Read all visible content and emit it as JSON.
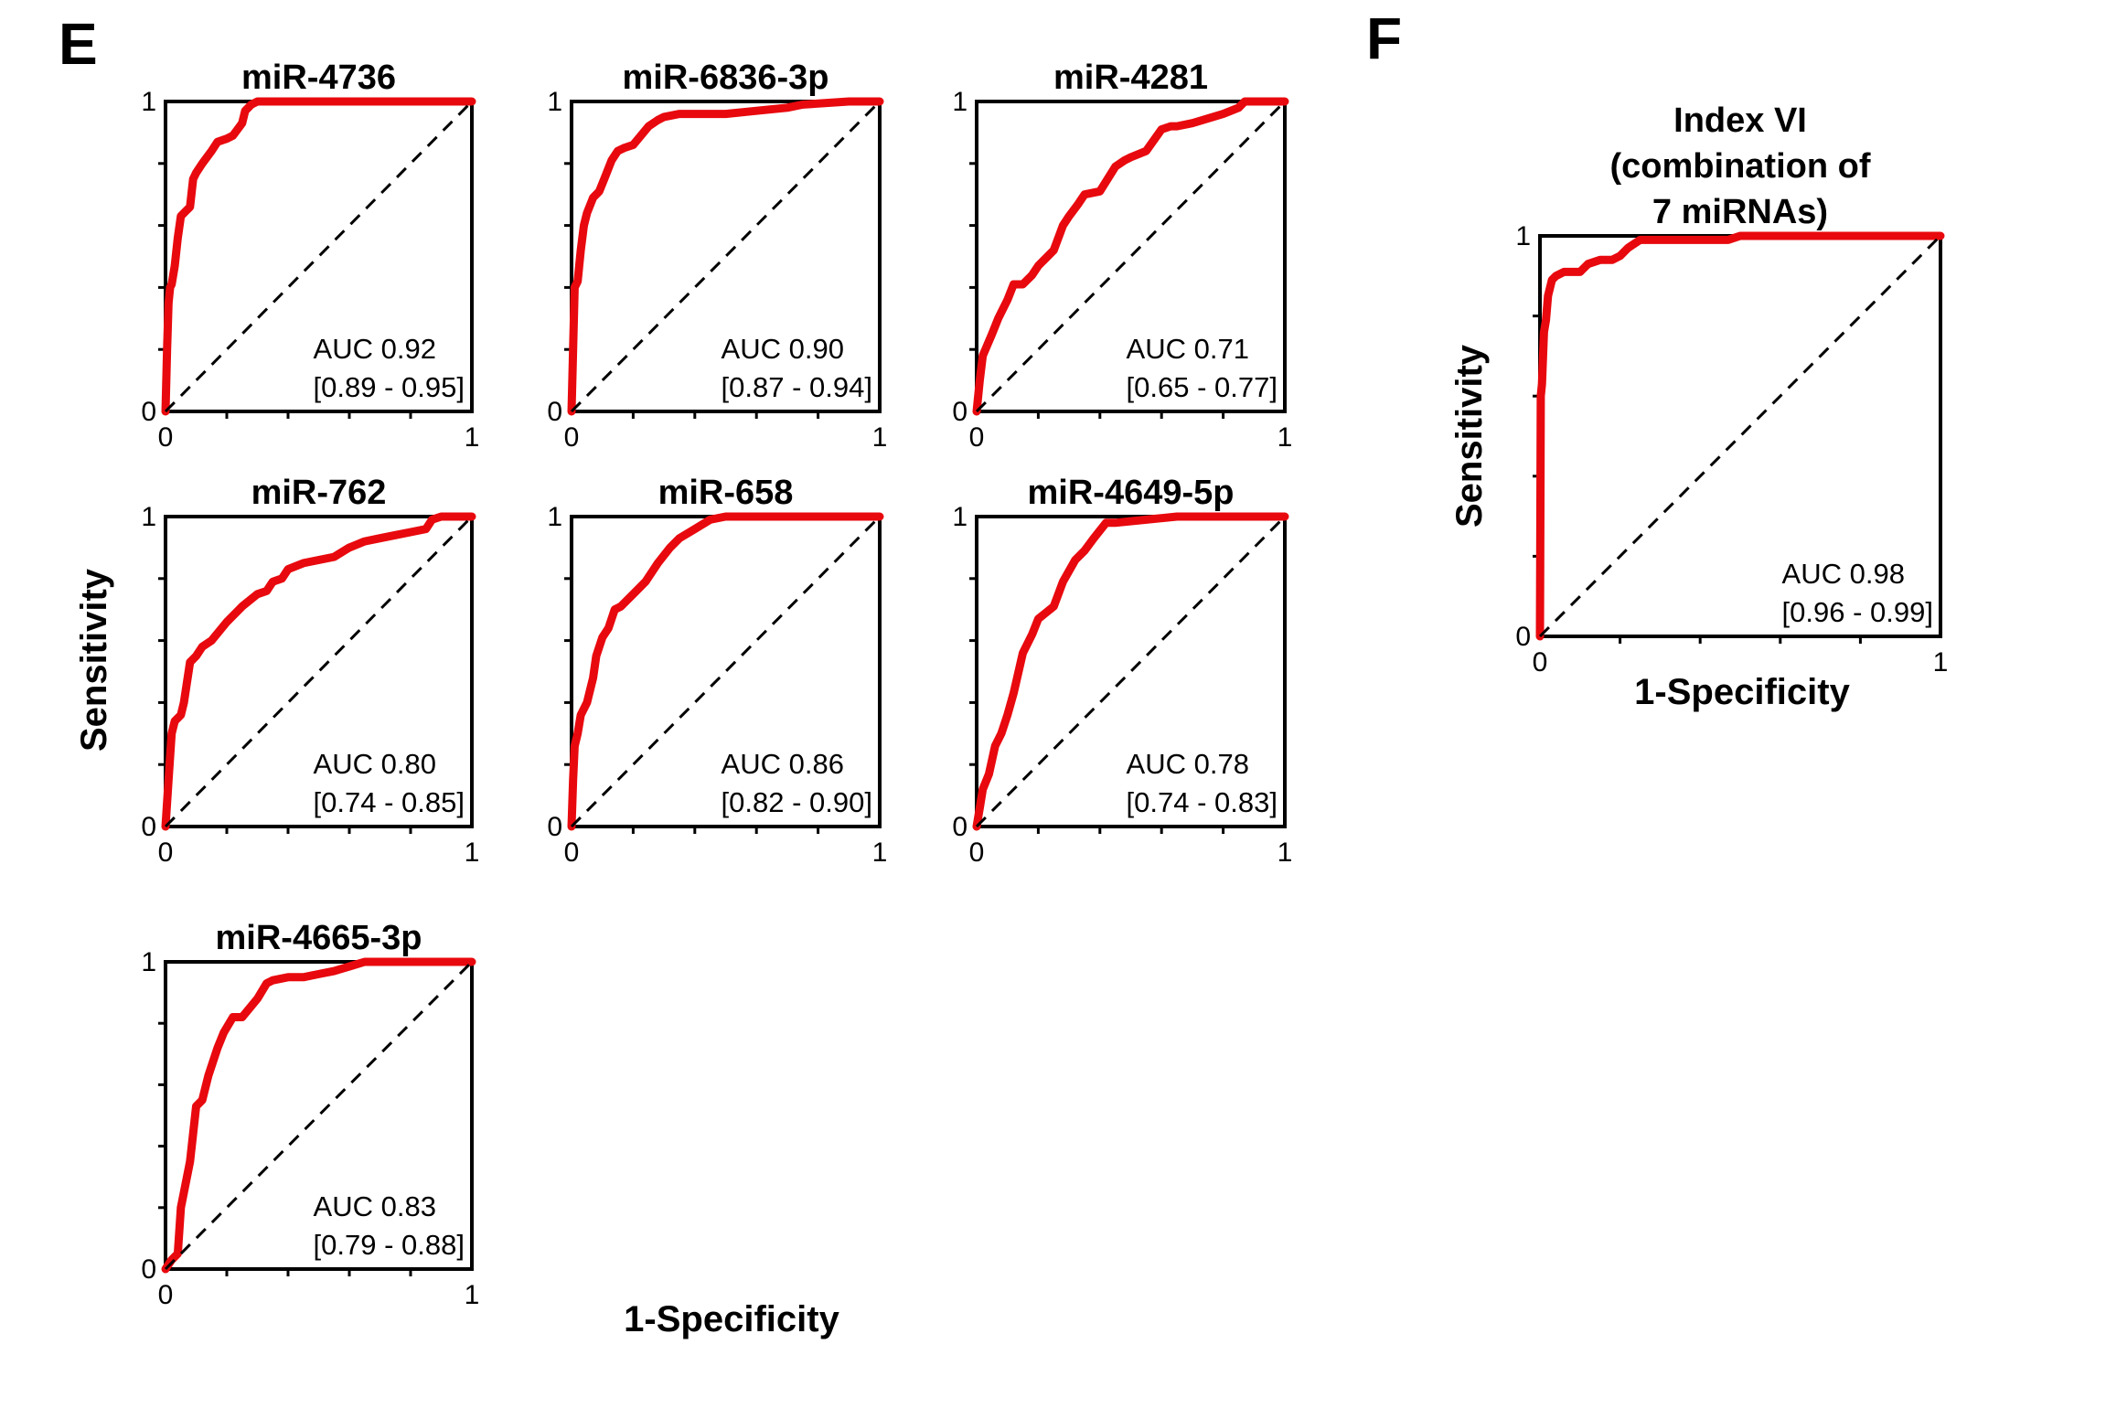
{
  "figure": {
    "panel_letters": [
      "E",
      "F"
    ],
    "shared_axis_labels": {
      "E": {
        "xlabel": "1-Specificity",
        "ylabel": "Sensitivity"
      },
      "F": {
        "xlabel": "1-Specificity",
        "ylabel": "Sensitivity"
      }
    },
    "colors": {
      "roc_curve": "#e8090e",
      "reference_line": "#000000",
      "axes": "#000000"
    }
  },
  "chart_data": [
    {
      "type": "line",
      "panel": "E",
      "title": [
        "miR-4736"
      ],
      "xlabel": "1-Specificity",
      "ylabel": "Sensitivity",
      "xlim": [
        0,
        1
      ],
      "ylim": [
        0,
        1
      ],
      "x_ticks": [
        "0",
        "1"
      ],
      "y_ticks": [
        "0",
        "1"
      ],
      "minor_ticks": 5,
      "grid": false,
      "auc_label": "AUC 0.92",
      "ci_label": "[0.89 - 0.95]",
      "series": [
        {
          "name": "ROC",
          "x": [
            0,
            0.005,
            0.01,
            0.015,
            0.02,
            0.03,
            0.04,
            0.05,
            0.06,
            0.08,
            0.09,
            0.1,
            0.12,
            0.15,
            0.17,
            0.2,
            0.22,
            0.25,
            0.26,
            0.28,
            0.3,
            0.4,
            0.5,
            0.9,
            0.95,
            1
          ],
          "y": [
            0,
            0.2,
            0.35,
            0.4,
            0.41,
            0.47,
            0.56,
            0.63,
            0.64,
            0.66,
            0.75,
            0.77,
            0.8,
            0.84,
            0.87,
            0.88,
            0.89,
            0.93,
            0.97,
            0.99,
            1.0,
            1.0,
            1.0,
            1.0,
            1.0,
            1.0
          ]
        },
        {
          "name": "reference",
          "x": [
            0,
            1
          ],
          "y": [
            0,
            1
          ],
          "style": "dashed"
        }
      ]
    },
    {
      "type": "line",
      "panel": "E",
      "title": [
        "miR-6836-3p"
      ],
      "xlabel": "1-Specificity",
      "ylabel": "Sensitivity",
      "xlim": [
        0,
        1
      ],
      "ylim": [
        0,
        1
      ],
      "x_ticks": [
        "0",
        "1"
      ],
      "y_ticks": [
        "0",
        "1"
      ],
      "minor_ticks": 5,
      "grid": false,
      "auc_label": "AUC 0.90",
      "ci_label": "[0.87 - 0.94]",
      "series": [
        {
          "name": "ROC",
          "x": [
            0,
            0.005,
            0.01,
            0.02,
            0.03,
            0.04,
            0.05,
            0.07,
            0.09,
            0.11,
            0.13,
            0.15,
            0.17,
            0.2,
            0.25,
            0.28,
            0.3,
            0.35,
            0.4,
            0.5,
            0.6,
            0.7,
            0.75,
            0.9,
            1
          ],
          "y": [
            0,
            0.2,
            0.4,
            0.42,
            0.52,
            0.6,
            0.64,
            0.69,
            0.71,
            0.76,
            0.81,
            0.84,
            0.85,
            0.86,
            0.92,
            0.94,
            0.95,
            0.96,
            0.96,
            0.96,
            0.97,
            0.98,
            0.99,
            1.0,
            1.0
          ]
        },
        {
          "name": "reference",
          "x": [
            0,
            1
          ],
          "y": [
            0,
            1
          ],
          "style": "dashed"
        }
      ]
    },
    {
      "type": "line",
      "panel": "E",
      "title": [
        "miR-4281"
      ],
      "xlabel": "1-Specificity",
      "ylabel": "Sensitivity",
      "xlim": [
        0,
        1
      ],
      "ylim": [
        0,
        1
      ],
      "x_ticks": [
        "0",
        "1"
      ],
      "y_ticks": [
        "0",
        "1"
      ],
      "minor_ticks": 5,
      "grid": false,
      "auc_label": "AUC 0.71",
      "ci_label": "[0.65 - 0.77]",
      "series": [
        {
          "name": "ROC",
          "x": [
            0,
            0.01,
            0.02,
            0.05,
            0.07,
            0.1,
            0.12,
            0.15,
            0.18,
            0.2,
            0.25,
            0.28,
            0.3,
            0.33,
            0.35,
            0.4,
            0.45,
            0.48,
            0.5,
            0.55,
            0.6,
            0.63,
            0.65,
            0.7,
            0.8,
            0.85,
            0.87,
            1
          ],
          "y": [
            0,
            0.1,
            0.18,
            0.25,
            0.3,
            0.36,
            0.41,
            0.41,
            0.44,
            0.47,
            0.52,
            0.6,
            0.63,
            0.67,
            0.7,
            0.71,
            0.79,
            0.81,
            0.82,
            0.84,
            0.91,
            0.92,
            0.92,
            0.93,
            0.96,
            0.98,
            1.0,
            1.0
          ]
        },
        {
          "name": "reference",
          "x": [
            0,
            1
          ],
          "y": [
            0,
            1
          ],
          "style": "dashed"
        }
      ]
    },
    {
      "type": "line",
      "panel": "E",
      "title": [
        "miR-762"
      ],
      "xlabel": "1-Specificity",
      "ylabel": "Sensitivity",
      "xlim": [
        0,
        1
      ],
      "ylim": [
        0,
        1
      ],
      "x_ticks": [
        "0",
        "1"
      ],
      "y_ticks": [
        "0",
        "1"
      ],
      "minor_ticks": 5,
      "grid": false,
      "auc_label": "AUC 0.80",
      "ci_label": "[0.74 - 0.85]",
      "series": [
        {
          "name": "ROC",
          "x": [
            0,
            0.01,
            0.02,
            0.03,
            0.05,
            0.06,
            0.08,
            0.1,
            0.12,
            0.15,
            0.2,
            0.25,
            0.3,
            0.33,
            0.35,
            0.38,
            0.4,
            0.45,
            0.5,
            0.55,
            0.6,
            0.65,
            0.7,
            0.75,
            0.8,
            0.85,
            0.87,
            0.9,
            1
          ],
          "y": [
            0,
            0.15,
            0.3,
            0.34,
            0.36,
            0.4,
            0.53,
            0.55,
            0.58,
            0.6,
            0.66,
            0.71,
            0.75,
            0.76,
            0.79,
            0.8,
            0.83,
            0.85,
            0.86,
            0.87,
            0.9,
            0.92,
            0.93,
            0.94,
            0.95,
            0.96,
            0.99,
            1.0,
            1.0
          ]
        },
        {
          "name": "reference",
          "x": [
            0,
            1
          ],
          "y": [
            0,
            1
          ],
          "style": "dashed"
        }
      ]
    },
    {
      "type": "line",
      "panel": "E",
      "title": [
        "miR-658"
      ],
      "xlabel": "1-Specificity",
      "ylabel": "Sensitivity",
      "xlim": [
        0,
        1
      ],
      "ylim": [
        0,
        1
      ],
      "x_ticks": [
        "0",
        "1"
      ],
      "y_ticks": [
        "0",
        "1"
      ],
      "minor_ticks": 5,
      "grid": false,
      "auc_label": "AUC 0.86",
      "ci_label": "[0.82 - 0.90]",
      "series": [
        {
          "name": "ROC",
          "x": [
            0,
            0.005,
            0.01,
            0.02,
            0.03,
            0.05,
            0.07,
            0.08,
            0.1,
            0.12,
            0.14,
            0.16,
            0.2,
            0.24,
            0.28,
            0.32,
            0.35,
            0.4,
            0.45,
            0.5,
            0.6,
            1
          ],
          "y": [
            0,
            0.15,
            0.26,
            0.3,
            0.36,
            0.4,
            0.48,
            0.55,
            0.61,
            0.64,
            0.7,
            0.71,
            0.75,
            0.79,
            0.85,
            0.9,
            0.93,
            0.96,
            0.99,
            1.0,
            1.0,
            1.0
          ]
        },
        {
          "name": "reference",
          "x": [
            0,
            1
          ],
          "y": [
            0,
            1
          ],
          "style": "dashed"
        }
      ]
    },
    {
      "type": "line",
      "panel": "E",
      "title": [
        "miR-4649-5p"
      ],
      "xlabel": "1-Specificity",
      "ylabel": "Sensitivity",
      "xlim": [
        0,
        1
      ],
      "ylim": [
        0,
        1
      ],
      "x_ticks": [
        "0",
        "1"
      ],
      "y_ticks": [
        "0",
        "1"
      ],
      "minor_ticks": 5,
      "grid": false,
      "auc_label": "AUC 0.78",
      "ci_label": "[0.74 - 0.83]",
      "series": [
        {
          "name": "ROC",
          "x": [
            0,
            0.01,
            0.02,
            0.04,
            0.06,
            0.08,
            0.1,
            0.12,
            0.15,
            0.18,
            0.2,
            0.25,
            0.28,
            0.32,
            0.35,
            0.38,
            0.42,
            0.45,
            0.55,
            0.65,
            1
          ],
          "y": [
            0,
            0.06,
            0.12,
            0.17,
            0.26,
            0.3,
            0.36,
            0.43,
            0.56,
            0.62,
            0.67,
            0.71,
            0.79,
            0.86,
            0.89,
            0.93,
            0.98,
            0.98,
            0.99,
            1.0,
            1.0
          ]
        },
        {
          "name": "reference",
          "x": [
            0,
            1
          ],
          "y": [
            0,
            1
          ],
          "style": "dashed"
        }
      ]
    },
    {
      "type": "line",
      "panel": "E",
      "title": [
        "miR-4665-3p"
      ],
      "xlabel": "1-Specificity",
      "ylabel": "Sensitivity",
      "xlim": [
        0,
        1
      ],
      "ylim": [
        0,
        1
      ],
      "x_ticks": [
        "0",
        "1"
      ],
      "y_ticks": [
        "0",
        "1"
      ],
      "minor_ticks": 5,
      "grid": false,
      "auc_label": "AUC 0.83",
      "ci_label": "[0.79 - 0.88]",
      "series": [
        {
          "name": "ROC",
          "x": [
            0,
            0.02,
            0.04,
            0.05,
            0.08,
            0.1,
            0.12,
            0.14,
            0.17,
            0.19,
            0.22,
            0.25,
            0.3,
            0.33,
            0.35,
            0.4,
            0.45,
            0.5,
            0.55,
            0.65,
            0.9,
            1
          ],
          "y": [
            0,
            0.03,
            0.05,
            0.2,
            0.35,
            0.53,
            0.55,
            0.63,
            0.72,
            0.77,
            0.82,
            0.82,
            0.88,
            0.93,
            0.94,
            0.95,
            0.95,
            0.96,
            0.97,
            1.0,
            1.0,
            1.0
          ]
        },
        {
          "name": "reference",
          "x": [
            0,
            1
          ],
          "y": [
            0,
            1
          ],
          "style": "dashed"
        }
      ]
    },
    {
      "type": "line",
      "panel": "F",
      "title": [
        "Index VI",
        "(combination of",
        "7 miRNAs)"
      ],
      "xlabel": "1-Specificity",
      "ylabel": "Sensitivity",
      "xlim": [
        0,
        1
      ],
      "ylim": [
        0,
        1
      ],
      "x_ticks": [
        "0",
        "1"
      ],
      "y_ticks": [
        "0",
        "1"
      ],
      "minor_ticks": 5,
      "grid": false,
      "auc_label": "AUC 0.98",
      "ci_label": "[0.96 - 0.99]",
      "series": [
        {
          "name": "ROC",
          "x": [
            0,
            0.002,
            0.005,
            0.01,
            0.015,
            0.02,
            0.03,
            0.04,
            0.06,
            0.1,
            0.12,
            0.15,
            0.18,
            0.2,
            0.22,
            0.25,
            0.3,
            0.47,
            0.5,
            0.7,
            1
          ],
          "y": [
            0,
            0.6,
            0.63,
            0.76,
            0.79,
            0.85,
            0.89,
            0.9,
            0.91,
            0.91,
            0.93,
            0.94,
            0.94,
            0.95,
            0.97,
            0.99,
            0.99,
            0.99,
            1.0,
            1.0,
            1.0
          ]
        },
        {
          "name": "reference",
          "x": [
            0,
            1
          ],
          "y": [
            0,
            1
          ],
          "style": "dashed"
        }
      ]
    }
  ]
}
